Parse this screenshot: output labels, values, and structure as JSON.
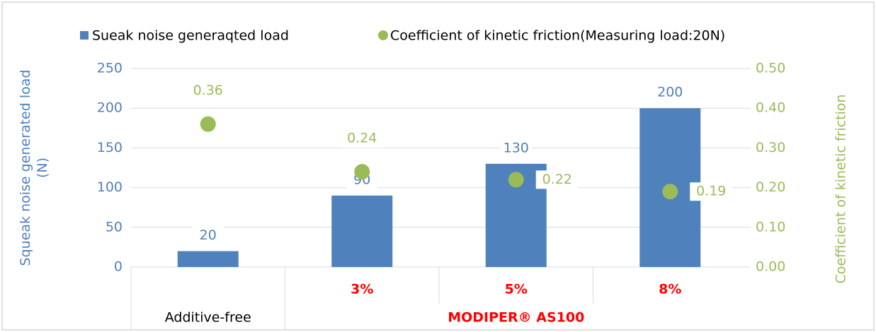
{
  "chart_data": {
    "type": "bar",
    "categories": [
      null,
      "3%",
      "5%",
      "8%"
    ],
    "groups": [
      {
        "label": "Additive-free",
        "size": 1
      },
      {
        "label": "MODIPER® AS100",
        "size": 3
      }
    ],
    "series": [
      {
        "name": "Sueak noise generaqted load",
        "type": "bar",
        "color": "#4f81bd",
        "values": [
          20,
          90,
          130,
          200
        ]
      },
      {
        "name": "Coefficient of kinetic friction(Measuring load:20N)",
        "type": "scatter",
        "axis": "y2",
        "color": "#9bbb59",
        "values": [
          0.36,
          0.24,
          0.22,
          0.19
        ]
      }
    ],
    "ylabel_lines": [
      "Squeak noise generated load",
      "(N)"
    ],
    "y2label": "Coefficient of kinetic friction",
    "ylim": [
      0,
      250
    ],
    "yticks": [
      0,
      50,
      100,
      150,
      200,
      250
    ],
    "y2lim": [
      0,
      0.5
    ],
    "y2ticks": [
      {
        "value": 0,
        "label": "0.00"
      },
      {
        "value": 0.1,
        "label": "0.10"
      },
      {
        "value": 0.2,
        "label": "0.20"
      },
      {
        "value": 0.3,
        "label": "0.30"
      },
      {
        "value": 0.4,
        "label": "0.40"
      },
      {
        "value": 0.5,
        "label": "0.50"
      }
    ],
    "grid": true,
    "legend": "top"
  }
}
